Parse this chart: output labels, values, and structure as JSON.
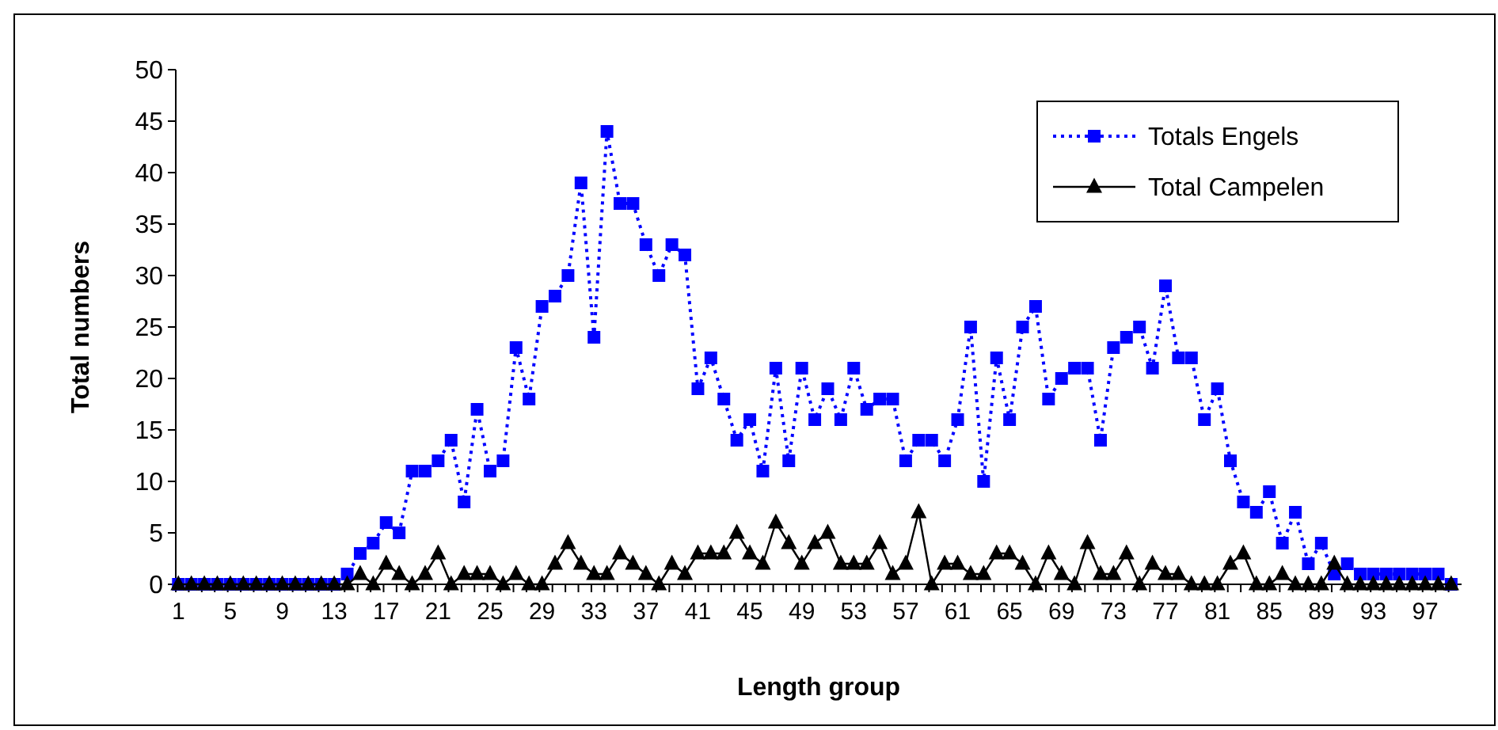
{
  "chart_data": {
    "type": "line",
    "xlabel": "Length group",
    "ylabel": "Total numbers",
    "categories": [
      "1",
      null,
      null,
      null,
      "5",
      null,
      null,
      null,
      "9",
      null,
      null,
      null,
      "13",
      null,
      null,
      null,
      "17",
      null,
      null,
      null,
      "21",
      null,
      null,
      null,
      "25",
      null,
      null,
      null,
      "29",
      null,
      null,
      null,
      "33",
      null,
      null,
      null,
      "37",
      null,
      null,
      null,
      "41",
      null,
      null,
      null,
      "45",
      null,
      null,
      null,
      "49",
      null,
      null,
      null,
      "53",
      null,
      null,
      null,
      "57",
      null,
      null,
      null,
      "61",
      null,
      null,
      null,
      "65",
      null,
      null,
      null,
      "69",
      null,
      null,
      null,
      "73",
      null,
      null,
      null,
      "77",
      null,
      null,
      null,
      "81",
      null,
      null,
      null,
      "85",
      null,
      null,
      null,
      "89",
      null,
      null,
      null,
      "93",
      null,
      null,
      null,
      "97",
      null,
      null
    ],
    "ylim": [
      0,
      50
    ],
    "yticks": [
      0,
      5,
      10,
      15,
      20,
      25,
      30,
      35,
      40,
      45,
      50
    ],
    "grid": false,
    "legend": "top right",
    "series": [
      {
        "name": "Totals Engels",
        "color": "#0000ff",
        "marker": "square",
        "line_style": "dotted",
        "values": [
          0,
          0,
          0,
          0,
          0,
          0,
          0,
          0,
          0,
          0,
          0,
          0,
          0,
          1,
          3,
          4,
          6,
          5,
          11,
          11,
          12,
          14,
          8,
          17,
          11,
          12,
          23,
          18,
          27,
          28,
          30,
          39,
          24,
          44,
          37,
          37,
          33,
          30,
          33,
          32,
          19,
          22,
          18,
          14,
          16,
          11,
          21,
          12,
          21,
          16,
          19,
          16,
          21,
          17,
          18,
          18,
          12,
          14,
          14,
          12,
          16,
          25,
          10,
          22,
          16,
          25,
          27,
          18,
          20,
          21,
          21,
          14,
          23,
          24,
          25,
          21,
          29,
          22,
          22,
          16,
          19,
          12,
          8,
          7,
          9,
          4,
          7,
          2,
          4,
          1,
          2,
          1,
          1,
          1,
          1,
          1,
          1,
          1,
          0
        ]
      },
      {
        "name": "Total Campelen",
        "color": "#000000",
        "marker": "triangle",
        "line_style": "solid",
        "values": [
          0,
          0,
          0,
          0,
          0,
          0,
          0,
          0,
          0,
          0,
          0,
          0,
          0,
          0,
          1,
          0,
          2,
          1,
          0,
          1,
          3,
          0,
          1,
          1,
          1,
          0,
          1,
          0,
          0,
          2,
          4,
          2,
          1,
          1,
          3,
          2,
          1,
          0,
          2,
          1,
          3,
          3,
          3,
          5,
          3,
          2,
          6,
          4,
          2,
          4,
          5,
          2,
          2,
          2,
          4,
          1,
          2,
          7,
          0,
          2,
          2,
          1,
          1,
          3,
          3,
          2,
          0,
          3,
          1,
          0,
          4,
          1,
          1,
          3,
          0,
          2,
          1,
          1,
          0,
          0,
          0,
          2,
          3,
          0,
          0,
          1,
          0,
          0,
          0,
          2,
          0,
          0,
          0,
          0,
          0,
          0,
          0,
          0,
          0
        ]
      }
    ]
  }
}
